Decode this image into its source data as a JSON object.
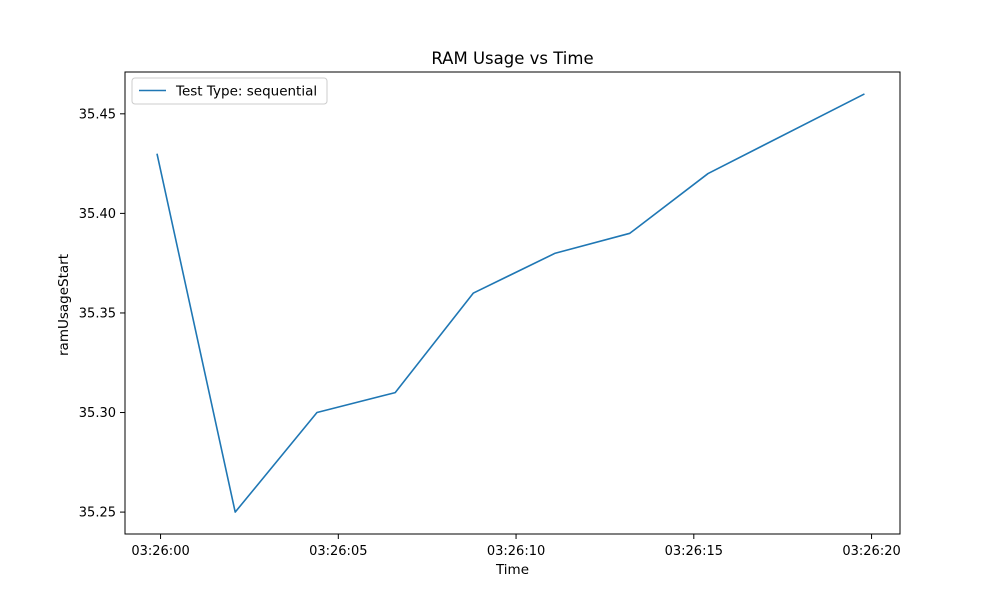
{
  "chart_data": {
    "type": "line",
    "title": "RAM Usage vs Time",
    "xlabel": "Time",
    "ylabel": "ramUsageStart",
    "x": [
      "03:25:59.9",
      "03:26:02.1",
      "03:26:04.4",
      "03:26:06.6",
      "03:26:08.8",
      "03:26:11.1",
      "03:26:13.2",
      "03:26:15.4",
      "03:26:19.8"
    ],
    "series": [
      {
        "name": "Test Type: sequential",
        "color": "#1f77b4",
        "values": [
          35.43,
          35.25,
          35.3,
          35.31,
          35.36,
          35.38,
          35.39,
          35.42,
          35.46
        ]
      }
    ],
    "xlim": [
      "03:25:59.0",
      "03:26:20.8"
    ],
    "ylim": [
      35.239,
      35.471
    ],
    "x_ticks": [
      "03:26:00",
      "03:26:05",
      "03:26:10",
      "03:26:15",
      "03:26:20"
    ],
    "y_ticks": [
      "35.25",
      "35.30",
      "35.35",
      "35.40",
      "35.45"
    ],
    "grid": false,
    "legend_position": "upper-left"
  }
}
